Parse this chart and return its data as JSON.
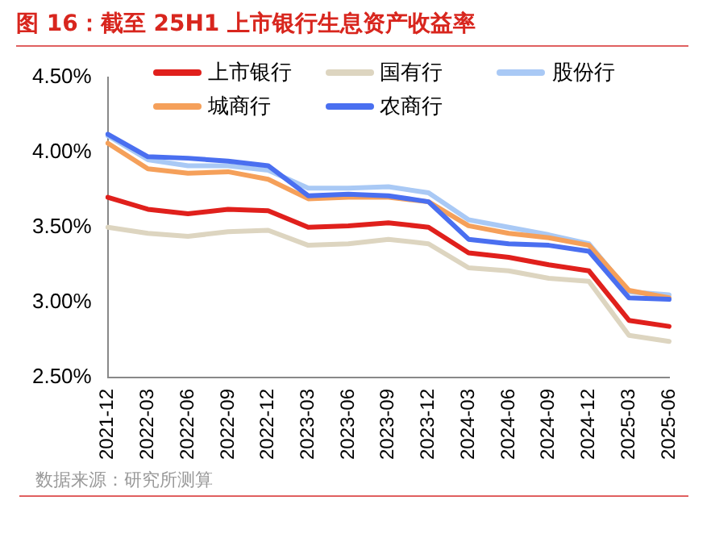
{
  "chart_data": {
    "type": "line",
    "title": "图 16：截至 25H1 上市银行生息资产收益率",
    "categories": [
      "2021-12",
      "2022-03",
      "2022-06",
      "2022-09",
      "2022-12",
      "2023-03",
      "2023-06",
      "2023-09",
      "2023-12",
      "2024-03",
      "2024-06",
      "2024-09",
      "2024-12",
      "2025-03",
      "2025-06"
    ],
    "series": [
      {
        "name": "上市银行",
        "color": "#e0201c",
        "values": [
          3.7,
          3.62,
          3.59,
          3.62,
          3.61,
          3.5,
          3.51,
          3.53,
          3.5,
          3.33,
          3.3,
          3.25,
          3.21,
          2.88,
          2.84
        ]
      },
      {
        "name": "国有行",
        "color": "#ddd5c0",
        "values": [
          3.5,
          3.46,
          3.44,
          3.47,
          3.48,
          3.38,
          3.39,
          3.42,
          3.39,
          3.23,
          3.21,
          3.16,
          3.14,
          2.78,
          2.74
        ]
      },
      {
        "name": "股份行",
        "color": "#a9c9f5",
        "values": [
          4.11,
          3.95,
          3.91,
          3.91,
          3.88,
          3.76,
          3.76,
          3.77,
          3.73,
          3.55,
          3.5,
          3.45,
          3.39,
          3.07,
          3.05
        ]
      },
      {
        "name": "城商行",
        "color": "#f5a05a",
        "values": [
          4.06,
          3.89,
          3.86,
          3.87,
          3.82,
          3.69,
          3.7,
          3.7,
          3.67,
          3.51,
          3.46,
          3.43,
          3.38,
          3.08,
          3.03
        ]
      },
      {
        "name": "农商行",
        "color": "#4a6ff0",
        "values": [
          4.12,
          3.97,
          3.96,
          3.94,
          3.91,
          3.71,
          3.72,
          3.71,
          3.67,
          3.42,
          3.39,
          3.38,
          3.34,
          3.03,
          3.02
        ]
      }
    ],
    "ylim": [
      2.5,
      4.5
    ],
    "yticks": [
      {
        "value": 2.5,
        "label": "2.50%"
      },
      {
        "value": 3.0,
        "label": "3.00%"
      },
      {
        "value": 3.5,
        "label": "3.50%"
      },
      {
        "value": 4.0,
        "label": "4.00%"
      },
      {
        "value": 4.5,
        "label": "4.50%"
      }
    ],
    "grid": false,
    "legend": "top",
    "marker": "none",
    "line_style": "solid",
    "annotations": [
      "数据来源：研究所测算"
    ]
  }
}
